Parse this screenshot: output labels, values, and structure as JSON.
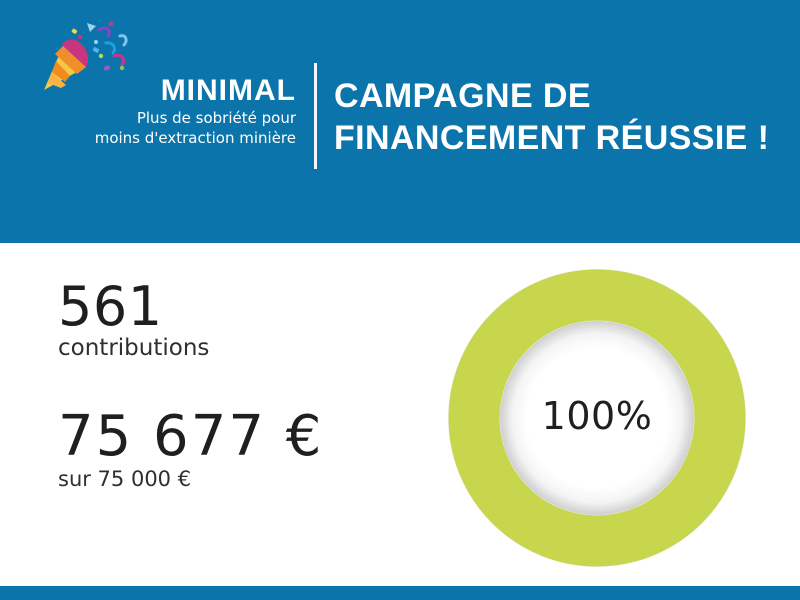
{
  "header": {
    "brand_name": "MINIMAL",
    "tagline_line_1": "Plus de sobriété pour",
    "tagline_line_2": "moins d'extraction minière",
    "campaign_line_1": "CAMPAGNE DE",
    "campaign_line_2": "FINANCEMENT RÉUSSIE !",
    "icon": "party-popper-icon"
  },
  "stats": {
    "contributions_count": "561",
    "contributions_label": "contributions",
    "amount_raised": "75 677 €",
    "goal_text": "sur 75 000 €"
  },
  "progress": {
    "percent_label": "100%",
    "value": 100
  },
  "colors": {
    "brand_blue": "#0b75ab",
    "progress_green": "#c8d64d",
    "text_dark": "#1f1f1f"
  }
}
